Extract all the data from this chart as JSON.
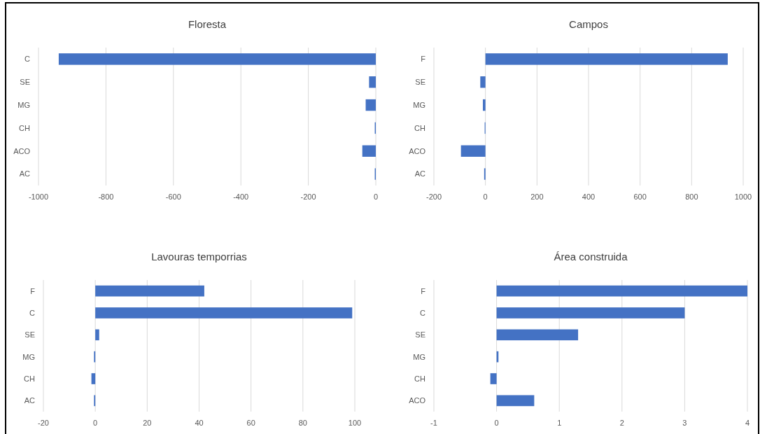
{
  "chart_data": [
    {
      "type": "bar",
      "title": "Floresta",
      "orientation": "horizontal",
      "categories": [
        "C",
        "SE",
        "MG",
        "CH",
        "ACO",
        "AC"
      ],
      "values": [
        -940,
        -20,
        -30,
        -3,
        -40,
        -3
      ],
      "color": "#4472c4",
      "xlim": [
        -1000,
        0
      ],
      "xticks": [
        -1000,
        -800,
        -600,
        -400,
        -200,
        0
      ],
      "grid": "x"
    },
    {
      "type": "bar",
      "title": "Campos",
      "orientation": "horizontal",
      "categories": [
        "F",
        "SE",
        "MG",
        "CH",
        "ACO",
        "AC"
      ],
      "values": [
        940,
        -20,
        -10,
        -3,
        -95,
        -5
      ],
      "color": "#4472c4",
      "xlim": [
        -200,
        1000
      ],
      "xticks": [
        -200,
        0,
        200,
        400,
        600,
        800,
        1000
      ],
      "grid": "x"
    },
    {
      "type": "bar",
      "title": "Lavouras temporrias",
      "orientation": "horizontal",
      "categories": [
        "F",
        "C",
        "SE",
        "MG",
        "CH",
        "AC"
      ],
      "values": [
        42,
        99,
        1.5,
        -0.5,
        -1.5,
        -0.5
      ],
      "color": "#4472c4",
      "xlim": [
        -20,
        100
      ],
      "xticks": [
        -20,
        0,
        20,
        40,
        60,
        80,
        100
      ],
      "grid": "x"
    },
    {
      "type": "bar",
      "title": "Área construida",
      "orientation": "horizontal",
      "categories": [
        "F",
        "C",
        "SE",
        "MG",
        "CH",
        "ACO"
      ],
      "values": [
        4,
        3,
        1.3,
        0.03,
        -0.1,
        0.6
      ],
      "color": "#4472c4",
      "xlim": [
        -1,
        4
      ],
      "xticks": [
        -1,
        0,
        1,
        2,
        3,
        4
      ],
      "grid": "x"
    }
  ]
}
